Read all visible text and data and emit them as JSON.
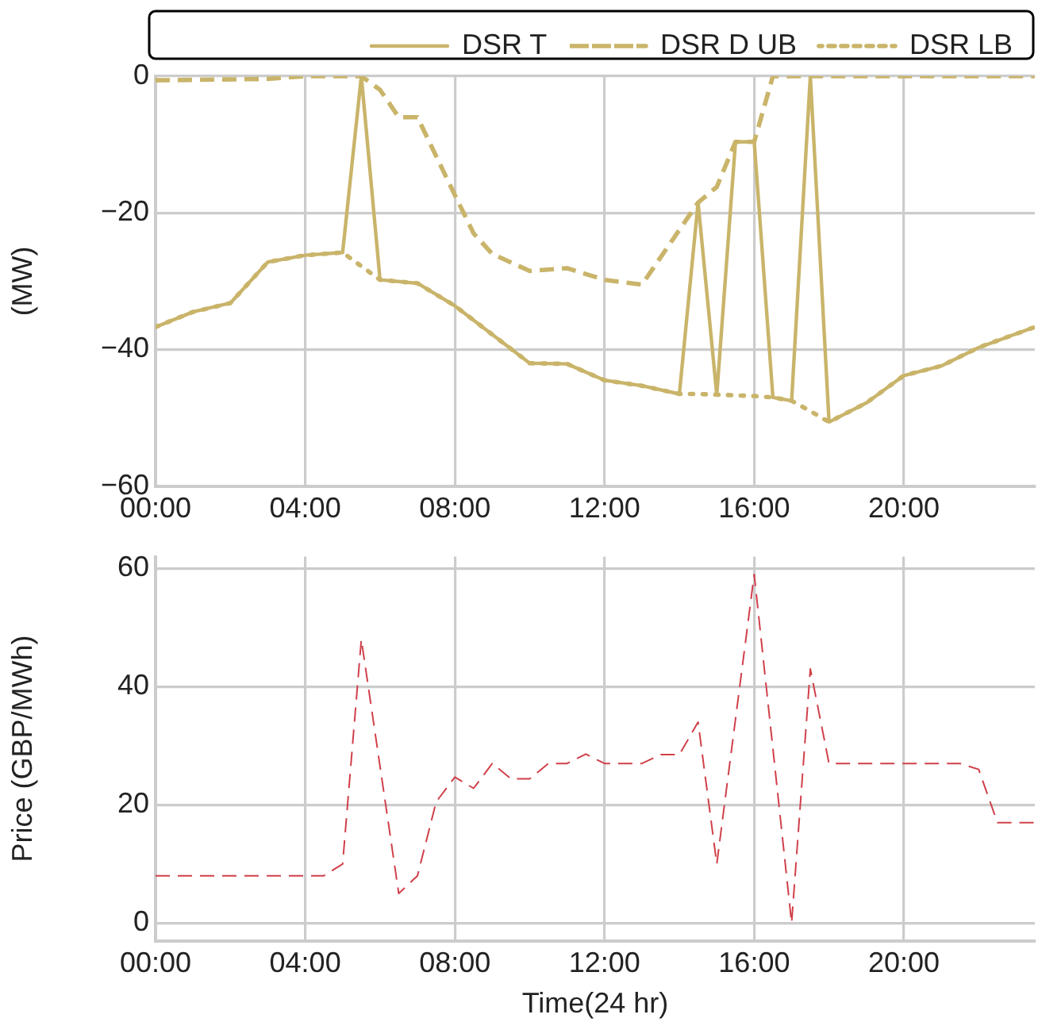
{
  "chart_data": [
    {
      "type": "line",
      "ylabel": "(MW)",
      "xlim": [
        0,
        23.5
      ],
      "xticks": [
        {
          "value": 0,
          "label": "00:00"
        },
        {
          "value": 4,
          "label": "04:00"
        },
        {
          "value": 8,
          "label": "08:00"
        },
        {
          "value": 12,
          "label": "12:00"
        },
        {
          "value": 16,
          "label": "16:00"
        },
        {
          "value": 20,
          "label": "20:00"
        }
      ],
      "ylim": [
        -60,
        0
      ],
      "yticks": [
        -60,
        -40,
        -20,
        0
      ],
      "grid": true,
      "legend": "top",
      "marker": "none",
      "series": [
        {
          "name": "DSR T",
          "color": "#c9b46a",
          "line_style": "solid",
          "x": [
            0,
            1,
            2,
            3,
            4,
            5,
            5.5,
            6,
            7,
            8,
            10,
            11,
            12,
            13,
            14,
            14.5,
            15,
            15.5,
            16,
            16.5,
            17,
            17.5,
            18,
            19,
            20,
            21,
            22,
            23.5
          ],
          "values": [
            -36.7,
            -34.5,
            -33.2,
            -27.2,
            -26.2,
            -25.8,
            0,
            -29.8,
            -30.3,
            -33.6,
            -42,
            -42.1,
            -44.5,
            -45.3,
            -46.5,
            -18.5,
            -46.6,
            -9.6,
            -9.6,
            -47,
            -47.5,
            0,
            -50.6,
            -47.8,
            -43.8,
            -42.4,
            -39.7,
            -36.7
          ]
        },
        {
          "name": "DSR D UB",
          "color": "#c9b46a",
          "line_style": "dashed",
          "x": [
            0,
            3,
            4,
            5.5,
            6,
            6.5,
            7,
            8,
            8.5,
            9,
            10,
            11,
            12,
            13,
            14.5,
            15,
            15.5,
            16,
            16.5,
            23.5
          ],
          "values": [
            -0.6,
            -0.4,
            0,
            0,
            -2,
            -6,
            -6,
            -17.4,
            -23,
            -26,
            -28.5,
            -28.1,
            -29.8,
            -30.5,
            -18.5,
            -16.2,
            -9.6,
            -9.6,
            0,
            0
          ]
        },
        {
          "name": "DSR LB",
          "color": "#c9b46a",
          "line_style": "dotted",
          "x": [
            0,
            1,
            2,
            3,
            4,
            5,
            5.5,
            6,
            7,
            8,
            10,
            11,
            12,
            13,
            14,
            14.5,
            15,
            15.5,
            16,
            16.5,
            17,
            17.5,
            18,
            19,
            20,
            21,
            22,
            23.5
          ],
          "values": [
            -36.7,
            -34.5,
            -33.2,
            -27.2,
            -26.2,
            -25.8,
            -27.8,
            -29.8,
            -30.3,
            -33.6,
            -42,
            -42.1,
            -44.5,
            -45.3,
            -46.5,
            -46.5,
            -46.6,
            -46.7,
            -46.8,
            -47,
            -47.5,
            -49,
            -50.6,
            -47.8,
            -43.8,
            -42.4,
            -39.7,
            -36.7
          ]
        }
      ]
    },
    {
      "type": "line",
      "xlabel": "Time(24 hr)",
      "ylabel": "Price (GBP/MWh)",
      "xlim": [
        0,
        23.5
      ],
      "xticks": [
        {
          "value": 0,
          "label": "00:00"
        },
        {
          "value": 4,
          "label": "04:00"
        },
        {
          "value": 8,
          "label": "08:00"
        },
        {
          "value": 12,
          "label": "12:00"
        },
        {
          "value": 16,
          "label": "16:00"
        },
        {
          "value": 20,
          "label": "20:00"
        }
      ],
      "ylim": [
        -3,
        62
      ],
      "yticks": [
        0,
        20,
        40,
        60
      ],
      "grid": true,
      "marker": "none",
      "series": [
        {
          "color": "#d0404a",
          "line_style": "dashed",
          "x": [
            0,
            4.5,
            5,
            5.5,
            6.5,
            7,
            7.5,
            8,
            8.5,
            9,
            9.5,
            10,
            10.5,
            11,
            11.5,
            12,
            13,
            13.5,
            14,
            14.5,
            15,
            16,
            17,
            17.5,
            18,
            21.5,
            22,
            22.5,
            23.5
          ],
          "values": [
            8,
            8,
            10,
            48,
            5,
            8,
            20.5,
            24.7,
            22.8,
            27,
            24.4,
            24.4,
            27,
            27,
            28.6,
            27,
            27,
            28.5,
            28.5,
            34,
            10,
            59,
            0,
            43,
            27,
            27,
            26,
            17,
            17
          ]
        }
      ]
    }
  ]
}
